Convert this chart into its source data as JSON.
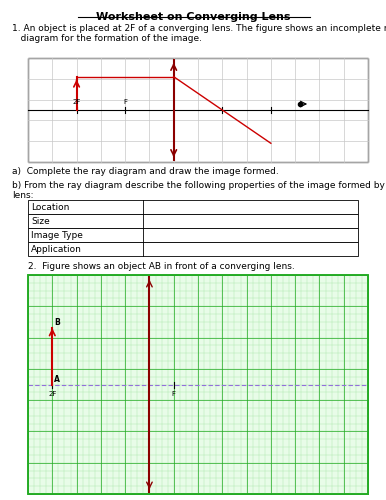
{
  "title": "Worksheet on Converging Lens",
  "q1_text": "1. An object is placed at 2F of a converging lens. The figure shows an incomplete ray\n   diagram for the formation of the image.",
  "qa_text": "a)  Complete the ray diagram and draw the image formed.",
  "qb_text": "b) From the ray diagram describe the following properties of the image formed by the\nlens:",
  "table_rows": [
    "Location",
    "Size",
    "Image Type",
    "Application"
  ],
  "q2_text": "2.  Figure shows an object AB in front of a converging lens.",
  "grid1_color": "#c8c8c8",
  "lens_color": "#8B0000",
  "ray_color": "#cc0000",
  "dashed_color": "#9370DB",
  "object_color": "#cc0000",
  "bg_color": "#ffffff"
}
